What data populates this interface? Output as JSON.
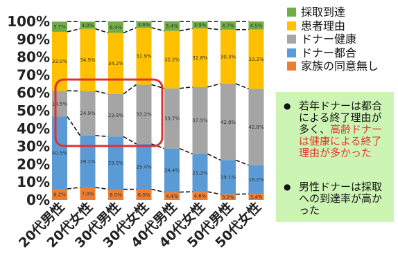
{
  "chart_data": {
    "type": "bar",
    "stacked": true,
    "categories": [
      "20代男性",
      "20代女性",
      "30代男性",
      "30代女性",
      "40代男性",
      "40代女性",
      "50代男性",
      "50代女性"
    ],
    "y_ticks": [
      "0%",
      "10%",
      "20%",
      "30%",
      "40%",
      "50%",
      "60%",
      "70%",
      "80%",
      "90%",
      "100%"
    ],
    "ylim": [
      0,
      100
    ],
    "series": [
      {
        "name": "家族の同意無し",
        "color": "#ed7d31",
        "values": [
          6.2,
          7.0,
          6.0,
          6.0,
          4.4,
          4.6,
          3.2,
          3.4
        ],
        "labels": [
          "6.2%",
          "7.0%",
          "6.0%",
          "6.0%",
          "4.4%",
          "4.6%",
          "3.2%",
          "3.4%"
        ]
      },
      {
        "name": "ドナー都合",
        "color": "#5b9bd5",
        "values": [
          40.5,
          29.1,
          29.5,
          25.4,
          24.4,
          21.2,
          19.1,
          16.1
        ],
        "labels": [
          "40.5%",
          "29.1%",
          "29.5%",
          "25.4%",
          "24.4%",
          "21.2%",
          "19.1%",
          "16.1%"
        ]
      },
      {
        "name": "ドナー健康",
        "color": "#a5a5a5",
        "values": [
          14.5,
          24.9,
          23.9,
          33.2,
          33.7,
          37.5,
          42.8,
          42.8
        ],
        "labels": [
          "14.5%",
          "24.9%",
          "23.9%",
          "33.2%",
          "33.7%",
          "37.5%",
          "42.8%",
          "42.8%"
        ]
      },
      {
        "name": "患者理由",
        "color": "#ffc000",
        "values": [
          33.0,
          34.9,
          34.2,
          31.9,
          32.2,
          32.8,
          30.3,
          33.2
        ],
        "labels": [
          "33.0%",
          "34.9%",
          "34.2%",
          "31.9%",
          "32.2%",
          "32.8%",
          "30.3%",
          "33.2%"
        ]
      },
      {
        "name": "採取到達",
        "color": "#70ad47",
        "values": [
          5.7,
          4.0,
          6.4,
          3.6,
          5.4,
          3.9,
          4.7,
          4.5
        ],
        "labels": [
          "5.7%",
          "4.0%",
          "6.4%",
          "3.6%",
          "5.4%",
          "3.9%",
          "4.7%",
          "4.5%"
        ]
      }
    ],
    "legend_order": [
      "採取到達",
      "患者理由",
      "ドナー健康",
      "ドナー都合",
      "家族の同意無し"
    ],
    "grid": false,
    "legend_position": "top-right",
    "highlight_color": "#e0302e"
  },
  "note": {
    "item1_part1": "若年ドナーは都合による終了理由が多く、",
    "item1_part2": "高齢ドナーは健康による終了理由が多かった",
    "item2": "男性ドナーは採取への到達率が高かった",
    "bullet": "●"
  }
}
